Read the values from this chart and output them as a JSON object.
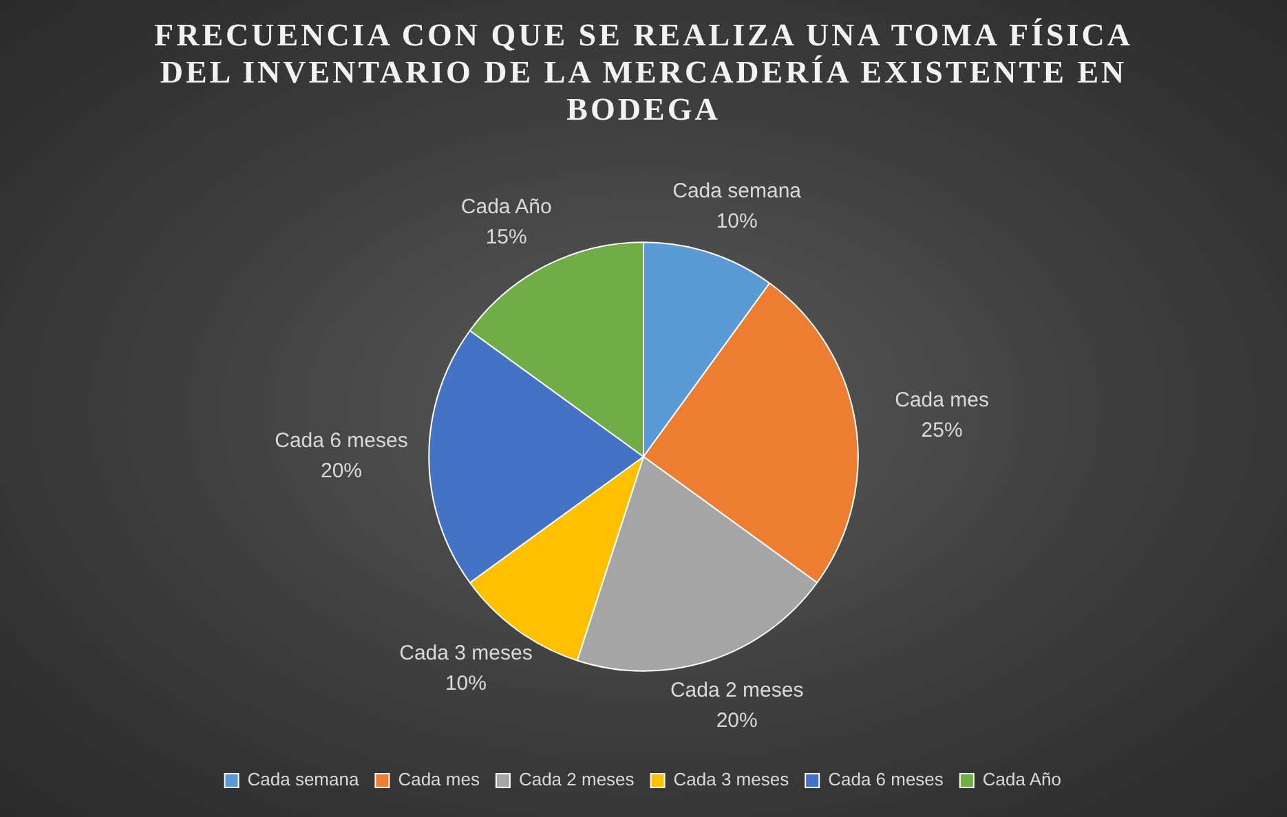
{
  "chart_data": {
    "type": "pie",
    "title": "FRECUENCIA CON QUE SE REALIZA UNA TOMA FÍSICA DEL INVENTARIO DE LA MERCADERÍA EXISTENTE EN BODEGA",
    "categories": [
      "Cada semana",
      "Cada mes",
      "Cada 2 meses",
      "Cada 3 meses",
      "Cada 6 meses",
      "Cada Año"
    ],
    "values": [
      10,
      25,
      20,
      10,
      20,
      15
    ],
    "value_labels": [
      "10%",
      "25%",
      "20%",
      "10%",
      "20%",
      "15%"
    ],
    "colors": [
      "#5b9bd5",
      "#ed7d31",
      "#a5a5a5",
      "#ffc000",
      "#4472c4",
      "#70ad47"
    ],
    "legend": "bottom"
  }
}
